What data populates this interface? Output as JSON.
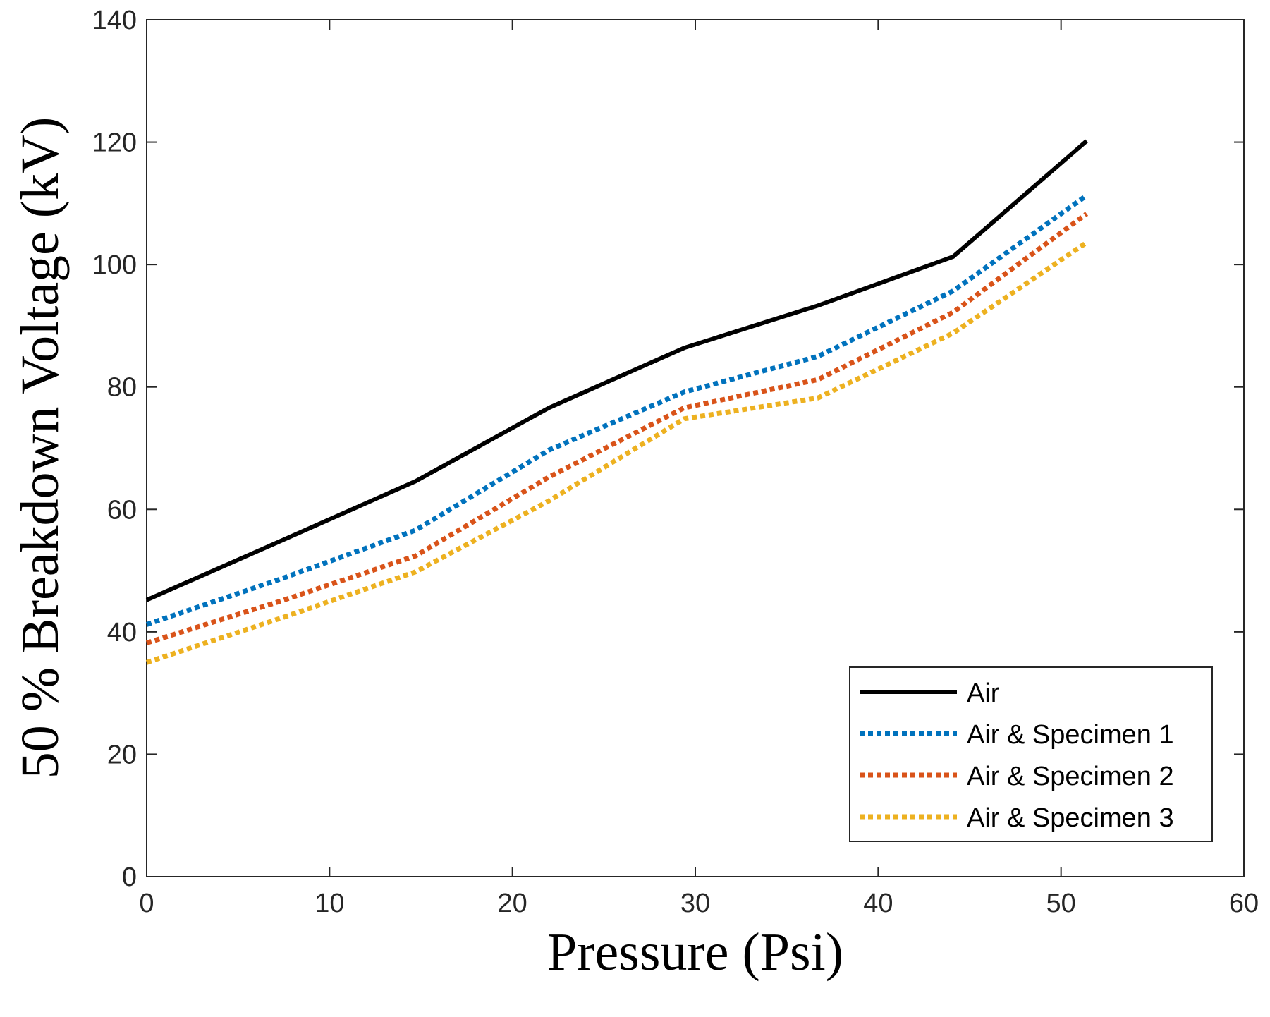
{
  "chart_data": {
    "type": "line",
    "title": "",
    "xlabel": "Pressure (Psi)",
    "ylabel": "50 % Breakdown Voltage (kV)",
    "xlim": [
      0,
      60
    ],
    "ylim": [
      0,
      140
    ],
    "xticks": [
      0,
      10,
      20,
      30,
      40,
      50,
      60
    ],
    "yticks": [
      0,
      20,
      40,
      60,
      80,
      100,
      120,
      140
    ],
    "x": [
      0,
      7.3,
      14.7,
      22,
      29.4,
      36.7,
      44.1,
      51.4
    ],
    "series": [
      {
        "name": "Air",
        "color": "#000000",
        "style": "solid",
        "values": [
          45.2,
          54.8,
          64.6,
          76.6,
          86.4,
          93.3,
          101.3,
          120.2
        ]
      },
      {
        "name": "Air & Specimen 1",
        "color": "#0072BD",
        "style": "dotted",
        "values": [
          41.2,
          48.6,
          56.6,
          69.7,
          79.2,
          85.0,
          95.7,
          111.3
        ]
      },
      {
        "name": "Air & Specimen 2",
        "color": "#D95319",
        "style": "dotted",
        "values": [
          38.2,
          45.0,
          52.4,
          65.3,
          76.6,
          81.2,
          92.2,
          108.3
        ]
      },
      {
        "name": "Air & Specimen 3",
        "color": "#EDB120",
        "style": "dotted",
        "values": [
          35.0,
          42.2,
          49.8,
          61.4,
          74.8,
          78.2,
          88.8,
          103.6
        ]
      }
    ],
    "grid": false,
    "legend_position": "bottom-right"
  }
}
